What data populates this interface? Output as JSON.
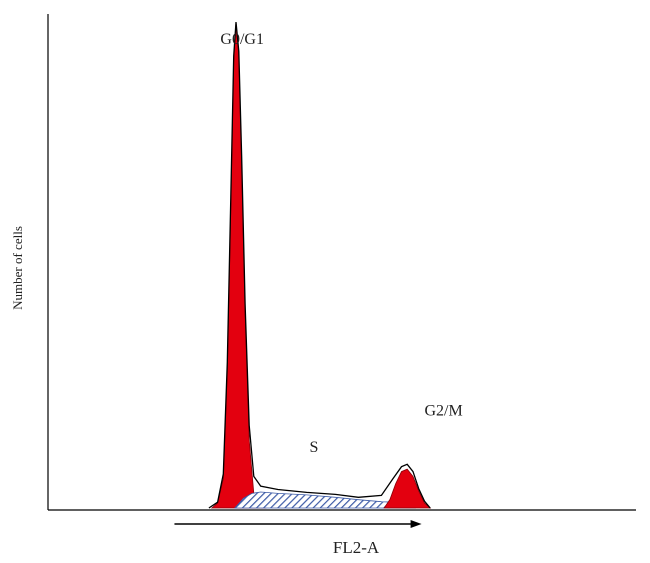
{
  "chart_data": {
    "type": "area",
    "title": "",
    "xlabel": "FL2-A",
    "ylabel": "Number of cells",
    "ylabel_note": "rotated label, partially legible",
    "grid": false,
    "legend": "none",
    "xlim": [
      0,
      1023
    ],
    "ylim": [
      0,
      1
    ],
    "x_axis_ticks": [],
    "y_axis_ticks": [],
    "peak_labels": [
      {
        "id": "g0g1",
        "text": "G0/G1",
        "x": 300,
        "y": 0.955
      },
      {
        "id": "s",
        "text": "S",
        "x": 455,
        "y": 0.115
      },
      {
        "id": "g2m",
        "text": "G2/M",
        "x": 655,
        "y": 0.19
      }
    ],
    "series": [
      {
        "name": "G0/G1",
        "fill": "#e3000f",
        "points": [
          [
            285,
            0
          ],
          [
            295,
            0.01
          ],
          [
            305,
            0.06
          ],
          [
            312,
            0.28
          ],
          [
            318,
            0.62
          ],
          [
            323,
            0.92
          ],
          [
            327,
            1.0
          ],
          [
            332,
            0.93
          ],
          [
            337,
            0.7
          ],
          [
            343,
            0.4
          ],
          [
            350,
            0.14
          ],
          [
            358,
            0.03
          ],
          [
            370,
            0.006
          ],
          [
            380,
            0
          ]
        ]
      },
      {
        "name": "S",
        "fill": "#3c5aa6",
        "pattern": "hatched",
        "points": [
          [
            325,
            0
          ],
          [
            340,
            0.02
          ],
          [
            355,
            0.03
          ],
          [
            370,
            0.033
          ],
          [
            400,
            0.03
          ],
          [
            450,
            0.027
          ],
          [
            500,
            0.022
          ],
          [
            540,
            0.017
          ],
          [
            580,
            0.013
          ],
          [
            600,
            0.012
          ],
          [
            620,
            0.008
          ],
          [
            640,
            0
          ]
        ]
      },
      {
        "name": "G2/M",
        "fill": "#e3000f",
        "points": [
          [
            585,
            0
          ],
          [
            595,
            0.018
          ],
          [
            605,
            0.05
          ],
          [
            615,
            0.075
          ],
          [
            625,
            0.08
          ],
          [
            635,
            0.065
          ],
          [
            645,
            0.035
          ],
          [
            655,
            0.01
          ],
          [
            665,
            0
          ]
        ]
      },
      {
        "name": "sum",
        "stroke": "#000000",
        "points": [
          [
            280,
            0
          ],
          [
            295,
            0.012
          ],
          [
            305,
            0.07
          ],
          [
            312,
            0.3
          ],
          [
            318,
            0.64
          ],
          [
            323,
            0.93
          ],
          [
            327,
            1.0
          ],
          [
            332,
            0.94
          ],
          [
            337,
            0.72
          ],
          [
            343,
            0.42
          ],
          [
            350,
            0.17
          ],
          [
            358,
            0.065
          ],
          [
            370,
            0.045
          ],
          [
            400,
            0.038
          ],
          [
            450,
            0.032
          ],
          [
            500,
            0.028
          ],
          [
            540,
            0.022
          ],
          [
            580,
            0.026
          ],
          [
            600,
            0.06
          ],
          [
            615,
            0.085
          ],
          [
            625,
            0.09
          ],
          [
            635,
            0.075
          ],
          [
            645,
            0.04
          ],
          [
            655,
            0.014
          ],
          [
            665,
            0
          ]
        ]
      }
    ],
    "x_arrow": {
      "from": 220,
      "to": 650
    }
  }
}
